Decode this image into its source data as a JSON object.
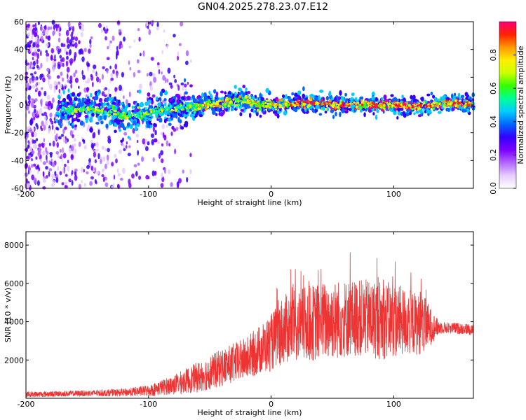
{
  "figure_title": "GN04.2025.278.23.07.E12",
  "chart_data": [
    {
      "type": "heatmap",
      "title": "GN04.2025.278.23.07.E12",
      "xlabel": "Height of straight line (km)",
      "ylabel": "Frequency (Hz)",
      "xlim": [
        -200,
        165
      ],
      "ylim": [
        -60,
        60
      ],
      "xticks": [
        -200,
        -100,
        0,
        100
      ],
      "yticks": [
        -60,
        -40,
        -20,
        0,
        20,
        40,
        60
      ],
      "colorbar": {
        "label": "Normalized spectral amplitude",
        "range": [
          0,
          1
        ],
        "ticks": [
          0.0,
          0.2,
          0.4,
          0.6,
          0.8
        ],
        "colormap": [
          "#ffffff",
          "#e6ccff",
          "#b366ff",
          "#7a00ff",
          "#3300ff",
          "#0066ff",
          "#00ccff",
          "#00ff99",
          "#33ff00",
          "#ccff00",
          "#ffee00",
          "#ff9900",
          "#ff2200",
          "#ff0077"
        ]
      },
      "ridge": {
        "description_points_x": [
          -170,
          -150,
          -130,
          -120,
          -100,
          -80,
          -60,
          -40,
          -20,
          -10,
          0,
          20,
          40,
          60,
          80,
          100,
          120,
          140,
          165
        ],
        "center_freq_hz": [
          -4,
          -3,
          -5,
          -8,
          -6,
          -3,
          -1,
          1,
          4,
          -1,
          0,
          1,
          1,
          0,
          0,
          0,
          -1,
          1,
          1
        ]
      }
    },
    {
      "type": "line",
      "xlabel": "Height of straight line (km)",
      "ylabel": "SNR (10 * v/v)",
      "xlim": [
        -200,
        165
      ],
      "ylim": [
        0,
        8700
      ],
      "xticks": [
        -200,
        -100,
        0,
        100
      ],
      "yticks": [
        2000,
        4000,
        6000,
        8000
      ],
      "color": "#ee3333",
      "envelope": {
        "x": [
          -200,
          -160,
          -120,
          -100,
          -80,
          -60,
          -40,
          -20,
          0,
          10,
          30,
          50,
          70,
          90,
          110,
          125,
          135,
          140,
          165
        ],
        "mean": [
          200,
          250,
          300,
          400,
          700,
          1100,
          1600,
          2100,
          2900,
          3600,
          3900,
          4100,
          4200,
          4100,
          4000,
          3800,
          3700,
          3700,
          3600
        ],
        "spread": [
          150,
          150,
          200,
          300,
          500,
          800,
          1000,
          1100,
          1500,
          1800,
          2000,
          2100,
          2000,
          2100,
          1800,
          1500,
          500,
          300,
          300
        ]
      }
    }
  ]
}
